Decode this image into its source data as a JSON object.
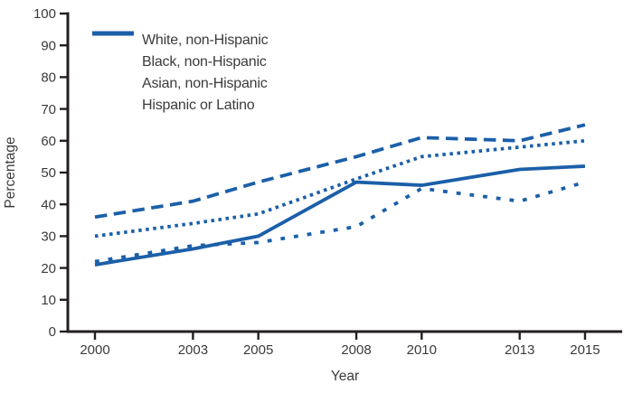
{
  "chart_data": {
    "type": "line",
    "title": "",
    "xlabel": "Year",
    "ylabel": "Percentage",
    "x": [
      2000,
      2003,
      2005,
      2008,
      2010,
      2013,
      2015
    ],
    "xlim": [
      1999.2,
      2016.2
    ],
    "ylim": [
      0,
      100
    ],
    "yticks": [
      0,
      10,
      20,
      30,
      40,
      50,
      60,
      70,
      80,
      90,
      100
    ],
    "grid": false,
    "legend_position": "top-left-inside",
    "series": [
      {
        "name": "White, non-Hispanic",
        "dash": "long-dash",
        "values": [
          36,
          41,
          47,
          55,
          61,
          60,
          65
        ]
      },
      {
        "name": "Black, non-Hispanic",
        "dash": "dense-dot",
        "values": [
          30,
          34,
          37,
          48,
          55,
          58,
          60
        ]
      },
      {
        "name": "Asian, non-Hispanic",
        "dash": "solid",
        "values": [
          21,
          26,
          30,
          47,
          46,
          51,
          52
        ]
      },
      {
        "name": "Hispanic or Latino",
        "dash": "sparse-dash",
        "values": [
          22,
          27,
          28,
          33,
          45,
          41,
          47
        ]
      }
    ],
    "colors": {
      "line": "#1b5fa8",
      "axis": "#231f20",
      "text": "#3b3b3b"
    }
  }
}
